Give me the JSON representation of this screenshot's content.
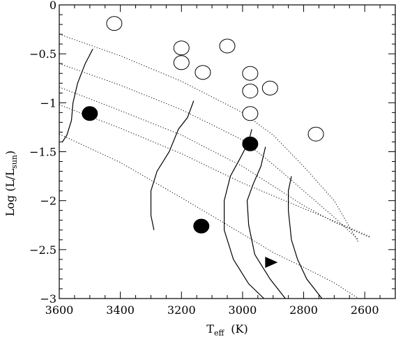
{
  "chart_data": {
    "type": "scatter",
    "xlabel": {
      "main": "T",
      "sub": "eff",
      "unit": "(K)"
    },
    "ylabel": {
      "main": "Log  (L/L",
      "sub": "sun",
      "close": ")"
    },
    "xlim": [
      3600,
      2500
    ],
    "ylim": [
      -3,
      0
    ],
    "x_ticks": [
      3600,
      3400,
      3200,
      3000,
      2800,
      2600
    ],
    "y_ticks": [
      0,
      -0.5,
      -1,
      -1.5,
      -2,
      -2.5,
      -3
    ],
    "x_tick_labels": [
      "3600",
      "3400",
      "3200",
      "3000",
      "2800",
      "2600"
    ],
    "y_tick_labels": [
      "0",
      "−0.5",
      "−1",
      "−1.5",
      "−2",
      "−2.5",
      "−3"
    ],
    "grid": false,
    "legend": "none",
    "series": [
      {
        "marker": "open-circle",
        "points": [
          {
            "x": 3420,
            "y": -0.19
          },
          {
            "x": 3200,
            "y": -0.44
          },
          {
            "x": 3200,
            "y": -0.59
          },
          {
            "x": 3050,
            "y": -0.42
          },
          {
            "x": 3130,
            "y": -0.69
          },
          {
            "x": 2975,
            "y": -0.7
          },
          {
            "x": 2975,
            "y": -0.88
          },
          {
            "x": 2910,
            "y": -0.85
          },
          {
            "x": 2975,
            "y": -1.11
          },
          {
            "x": 2760,
            "y": -1.32
          }
        ]
      },
      {
        "marker": "filled-circle",
        "points": [
          {
            "x": 3500,
            "y": -1.11
          },
          {
            "x": 2975,
            "y": -1.42
          },
          {
            "x": 3135,
            "y": -2.26
          }
        ]
      },
      {
        "marker": "filled-triangle-right",
        "points": [
          {
            "x": 2910,
            "y": -2.63
          }
        ]
      }
    ],
    "isochrones": [
      [
        [
          3600,
          -0.3
        ],
        [
          3400,
          -0.52
        ],
        [
          3200,
          -0.78
        ],
        [
          3000,
          -1.1
        ],
        [
          2900,
          -1.33
        ],
        [
          2800,
          -1.65
        ],
        [
          2700,
          -2.0
        ],
        [
          2620,
          -2.43
        ]
      ],
      [
        [
          3600,
          -0.6
        ],
        [
          3400,
          -0.82
        ],
        [
          3200,
          -1.07
        ],
        [
          3000,
          -1.38
        ],
        [
          2900,
          -1.63
        ],
        [
          2800,
          -1.9
        ],
        [
          2700,
          -2.17
        ],
        [
          2620,
          -2.4
        ]
      ],
      [
        [
          3600,
          -0.84
        ],
        [
          3400,
          -1.08
        ],
        [
          3200,
          -1.33
        ],
        [
          3000,
          -1.65
        ],
        [
          2900,
          -1.85
        ],
        [
          2800,
          -2.05
        ],
        [
          2700,
          -2.22
        ],
        [
          2580,
          -2.38
        ]
      ],
      [
        [
          3600,
          -1.02
        ],
        [
          3400,
          -1.26
        ],
        [
          3200,
          -1.52
        ],
        [
          3000,
          -1.82
        ],
        [
          2900,
          -1.95
        ],
        [
          2800,
          -2.08
        ],
        [
          2700,
          -2.21
        ],
        [
          2580,
          -2.37
        ]
      ],
      [
        [
          3600,
          -1.32
        ],
        [
          3400,
          -1.61
        ],
        [
          3200,
          -1.97
        ],
        [
          3000,
          -2.34
        ],
        [
          2900,
          -2.53
        ],
        [
          2800,
          -2.68
        ],
        [
          2700,
          -2.84
        ],
        [
          2620,
          -3.0
        ]
      ]
    ],
    "tracks": [
      [
        [
          3590,
          -1.4
        ],
        [
          3575,
          -1.33
        ],
        [
          3560,
          -1.18
        ],
        [
          3555,
          -1.0
        ],
        [
          3540,
          -0.8
        ],
        [
          3515,
          -0.6
        ],
        [
          3490,
          -0.45
        ]
      ],
      [
        [
          3290,
          -2.3
        ],
        [
          3300,
          -2.15
        ],
        [
          3300,
          -1.9
        ],
        [
          3280,
          -1.7
        ],
        [
          3240,
          -1.5
        ],
        [
          3210,
          -1.27
        ],
        [
          3180,
          -1.15
        ],
        [
          3160,
          -0.98
        ]
      ],
      [
        [
          2930,
          -3.0
        ],
        [
          2980,
          -2.85
        ],
        [
          3030,
          -2.6
        ],
        [
          3060,
          -2.3
        ],
        [
          3060,
          -2.0
        ],
        [
          3040,
          -1.75
        ],
        [
          3010,
          -1.58
        ],
        [
          2980,
          -1.4
        ],
        [
          2970,
          -1.27
        ]
      ],
      [
        [
          2860,
          -3.0
        ],
        [
          2910,
          -2.8
        ],
        [
          2960,
          -2.55
        ],
        [
          2980,
          -2.25
        ],
        [
          2985,
          -2.0
        ],
        [
          2965,
          -1.83
        ],
        [
          2940,
          -1.65
        ],
        [
          2925,
          -1.45
        ]
      ],
      [
        [
          2740,
          -3.0
        ],
        [
          2790,
          -2.8
        ],
        [
          2820,
          -2.6
        ],
        [
          2840,
          -2.4
        ],
        [
          2850,
          -2.1
        ],
        [
          2850,
          -1.9
        ],
        [
          2840,
          -1.75
        ]
      ]
    ]
  }
}
